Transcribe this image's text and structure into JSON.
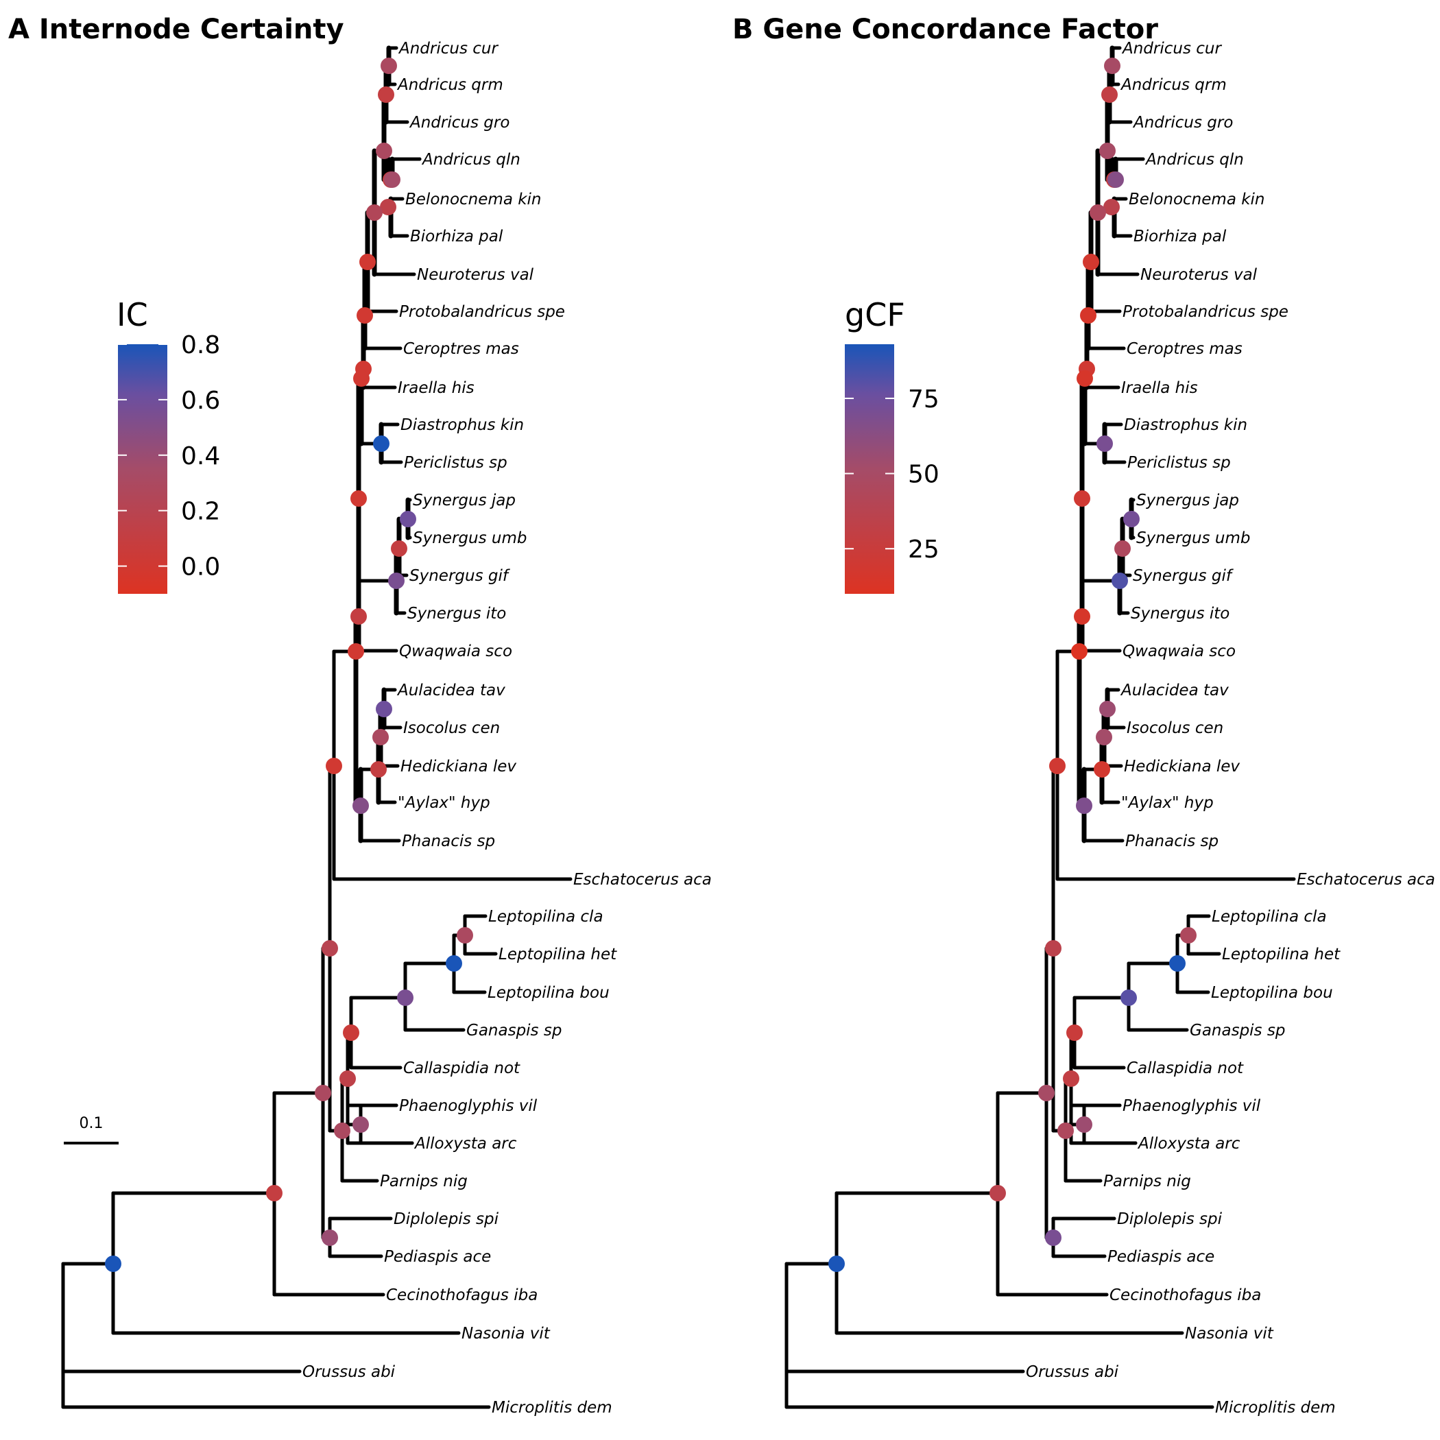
{
  "panels": [
    {
      "title": "A Internode Certainty",
      "legend": {
        "title": "IC",
        "ticks": [
          "0.8",
          "0.6",
          "0.4",
          "0.2",
          "0.0"
        ],
        "tick_values": [
          0.8,
          0.6,
          0.4,
          0.2,
          0.0
        ],
        "min": -0.1,
        "max": 0.8
      },
      "scale_bar": "0.1",
      "node_values": [
        0.3,
        0.1,
        0.1,
        0.35,
        0.15,
        0.3,
        0.25,
        0.0,
        0.0,
        0.0,
        0.8,
        0.0,
        0.6,
        0.1,
        0.55,
        0.0,
        0.6,
        0.3,
        0.1,
        0.5,
        0.1,
        0.0,
        0.0,
        0.3,
        0.8,
        0.55,
        0.05,
        0.15,
        0.4,
        0.3,
        0.2,
        0.4,
        0.3,
        0.1
      ]
    },
    {
      "title": "B Gene Concordance Factor",
      "legend": {
        "title": "gCF",
        "ticks": [
          "75",
          "50",
          "25"
        ],
        "tick_values": [
          75,
          50,
          25
        ],
        "min": 10,
        "max": 93
      },
      "node_values": [
        50,
        30,
        25,
        65,
        35,
        50,
        45,
        18,
        15,
        20,
        70,
        15,
        72,
        45,
        82,
        20,
        55,
        52,
        18,
        68,
        15,
        10,
        20,
        45,
        93,
        80,
        25,
        30,
        55,
        45,
        35,
        70,
        50,
        35
      ]
    }
  ],
  "tips": [
    "Andricus cur",
    "Andricus qrm",
    "Andricus gro",
    "Andricus qln",
    "Belonocnema kin",
    "Biorhiza pal",
    "Neuroterus val",
    "Protobalandricus spe",
    "Ceroptres mas",
    "Iraella his",
    "Diastrophus kin",
    "Periclistus sp",
    "Synergus jap",
    "Synergus umb",
    "Synergus gif",
    "Synergus ito",
    "Qwaqwaia sco",
    "Aulacidea tav",
    "Isocolus cen",
    "Hedickiana lev",
    "\"Aylax\" hyp",
    "Phanacis sp",
    "Eschatocerus aca",
    "Leptopilina cla",
    "Leptopilina het",
    "Leptopilina bou",
    "Ganaspis sp",
    "Callaspidia not",
    "Phaenoglyphis vil",
    "Alloxysta arc",
    "Parnips nig",
    "Diplolepis spi",
    "Pediaspis ace",
    "Cecinothofagus iba",
    "Nasonia vit",
    "Orussus abi",
    "Microplitis dem"
  ],
  "colors": {
    "low": "#dd3322",
    "mid": "#a54c68",
    "high": "#1a55b8",
    "branch": "#000000"
  }
}
